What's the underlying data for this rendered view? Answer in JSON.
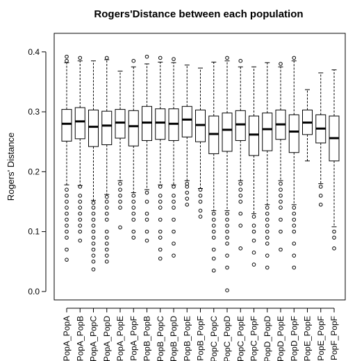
{
  "chart_data": {
    "type": "boxplot",
    "title": "Rogers'Distance between each population",
    "y_label": "Rogers' Distance",
    "ylim": [
      -0.014,
      0.431
    ],
    "yticks": [
      {
        "value": 0,
        "label": "0.0"
      },
      0.1,
      0.2,
      0.3,
      0.4
    ],
    "color": "#000000",
    "categories": [
      "PopA_PopA",
      "PopA_PopB",
      "PopA_PopC",
      "PopA_PopD",
      "PopA_PopE",
      "PopA_PopF",
      "PopB_PopB",
      "PopB_PopC",
      "PopB_PopD",
      "PopB_PopE",
      "PopB_PopF",
      "PopC_PopC",
      "PopC_PopD",
      "PopC_PopE",
      "PopC_PopF",
      "PopD_PopD",
      "PopD_PopE",
      "PopD_PopF",
      "PopE_PopE",
      "PopE_PopF",
      "PopF_PopF"
    ],
    "boxes": [
      {
        "min": 0.178,
        "q1": 0.251,
        "median": 0.28,
        "q3": 0.304,
        "max": 0.382,
        "outliers": [
          0.385,
          0.392,
          0.17,
          0.16,
          0.15,
          0.14,
          0.13,
          0.12,
          0.11,
          0.1,
          0.09,
          0.07,
          0.053
        ]
      },
      {
        "min": 0.177,
        "q1": 0.255,
        "median": 0.284,
        "q3": 0.307,
        "max": 0.385,
        "outliers": [
          0.39,
          0.175,
          0.16,
          0.15,
          0.14,
          0.13,
          0.12,
          0.11,
          0.1,
          0.085
        ]
      },
      {
        "min": 0.152,
        "q1": 0.242,
        "median": 0.275,
        "q3": 0.303,
        "max": 0.385,
        "outliers": [
          0.148,
          0.14,
          0.13,
          0.12,
          0.11,
          0.1,
          0.09,
          0.08,
          0.07,
          0.06,
          0.05,
          0.037
        ]
      },
      {
        "min": 0.162,
        "q1": 0.245,
        "median": 0.277,
        "q3": 0.301,
        "max": 0.387,
        "outliers": [
          0.39,
          0.158,
          0.15,
          0.14,
          0.13,
          0.12,
          0.1,
          0.09,
          0.08,
          0.07,
          0.06,
          0.05
        ]
      },
      {
        "min": 0.185,
        "q1": 0.256,
        "median": 0.282,
        "q3": 0.304,
        "max": 0.368,
        "outliers": [
          0.18,
          0.17,
          0.16,
          0.15,
          0.14,
          0.107
        ]
      },
      {
        "min": 0.165,
        "q1": 0.243,
        "median": 0.276,
        "q3": 0.302,
        "max": 0.375,
        "outliers": [
          0.385,
          0.16,
          0.15,
          0.14,
          0.13,
          0.12,
          0.1,
          0.09
        ]
      },
      {
        "min": 0.17,
        "q1": 0.252,
        "median": 0.282,
        "q3": 0.309,
        "max": 0.38,
        "outliers": [
          0.392,
          0.165,
          0.15,
          0.13,
          0.12,
          0.1,
          0.085
        ]
      },
      {
        "min": 0.178,
        "q1": 0.254,
        "median": 0.282,
        "q3": 0.305,
        "max": 0.383,
        "outliers": [
          0.39,
          0.175,
          0.16,
          0.15,
          0.14,
          0.12,
          0.1,
          0.09,
          0.07,
          0.055
        ]
      },
      {
        "min": 0.178,
        "q1": 0.252,
        "median": 0.28,
        "q3": 0.305,
        "max": 0.382,
        "outliers": [
          0.388,
          0.175,
          0.16,
          0.15,
          0.14,
          0.12,
          0.1,
          0.08,
          0.06
        ]
      },
      {
        "min": 0.185,
        "q1": 0.258,
        "median": 0.287,
        "q3": 0.309,
        "max": 0.378,
        "outliers": [
          0.18,
          0.175,
          0.165,
          0.155,
          0.145
        ]
      },
      {
        "min": 0.172,
        "q1": 0.25,
        "median": 0.278,
        "q3": 0.303,
        "max": 0.373,
        "outliers": [
          0.17,
          0.16,
          0.15,
          0.135,
          0.125
        ]
      },
      {
        "min": 0.135,
        "q1": 0.23,
        "median": 0.263,
        "q3": 0.293,
        "max": 0.383,
        "outliers": [
          0.13,
          0.12,
          0.11,
          0.1,
          0.09,
          0.07,
          0.055,
          0.035
        ]
      },
      {
        "min": 0.135,
        "q1": 0.234,
        "median": 0.27,
        "q3": 0.298,
        "max": 0.385,
        "outliers": [
          0.39,
          0.13,
          0.12,
          0.11,
          0.1,
          0.09,
          0.08,
          0.06,
          0.04,
          0.002
        ]
      },
      {
        "min": 0.185,
        "q1": 0.252,
        "median": 0.279,
        "q3": 0.302,
        "max": 0.375,
        "outliers": [
          0.385,
          0.18,
          0.17,
          0.16,
          0.15,
          0.13,
          0.11,
          0.072
        ]
      },
      {
        "min": 0.13,
        "q1": 0.227,
        "median": 0.262,
        "q3": 0.293,
        "max": 0.375,
        "outliers": [
          0.125,
          0.11,
          0.1,
          0.085,
          0.065,
          0.045
        ]
      },
      {
        "min": 0.145,
        "q1": 0.235,
        "median": 0.271,
        "q3": 0.298,
        "max": 0.382,
        "outliers": [
          0.14,
          0.13,
          0.12,
          0.11,
          0.1,
          0.09,
          0.08,
          0.06,
          0.04
        ]
      },
      {
        "min": 0.185,
        "q1": 0.254,
        "median": 0.279,
        "q3": 0.303,
        "max": 0.375,
        "outliers": [
          0.38,
          0.18,
          0.17,
          0.16,
          0.15,
          0.14,
          0.12,
          0.1,
          0.07
        ]
      },
      {
        "min": 0.145,
        "q1": 0.232,
        "median": 0.267,
        "q3": 0.295,
        "max": 0.385,
        "outliers": [
          0.39,
          0.14,
          0.13,
          0.12,
          0.11,
          0.1,
          0.08,
          0.06,
          0.04
        ]
      },
      {
        "min": 0.218,
        "q1": 0.262,
        "median": 0.282,
        "q3": 0.303,
        "max": 0.337,
        "outliers": []
      },
      {
        "min": 0.18,
        "q1": 0.248,
        "median": 0.272,
        "q3": 0.295,
        "max": 0.365,
        "outliers": [
          0.175,
          0.16,
          0.145
        ]
      },
      {
        "min": 0.108,
        "q1": 0.218,
        "median": 0.256,
        "q3": 0.293,
        "max": 0.37,
        "outliers": [
          0.1,
          0.09,
          0.072
        ]
      }
    ]
  }
}
